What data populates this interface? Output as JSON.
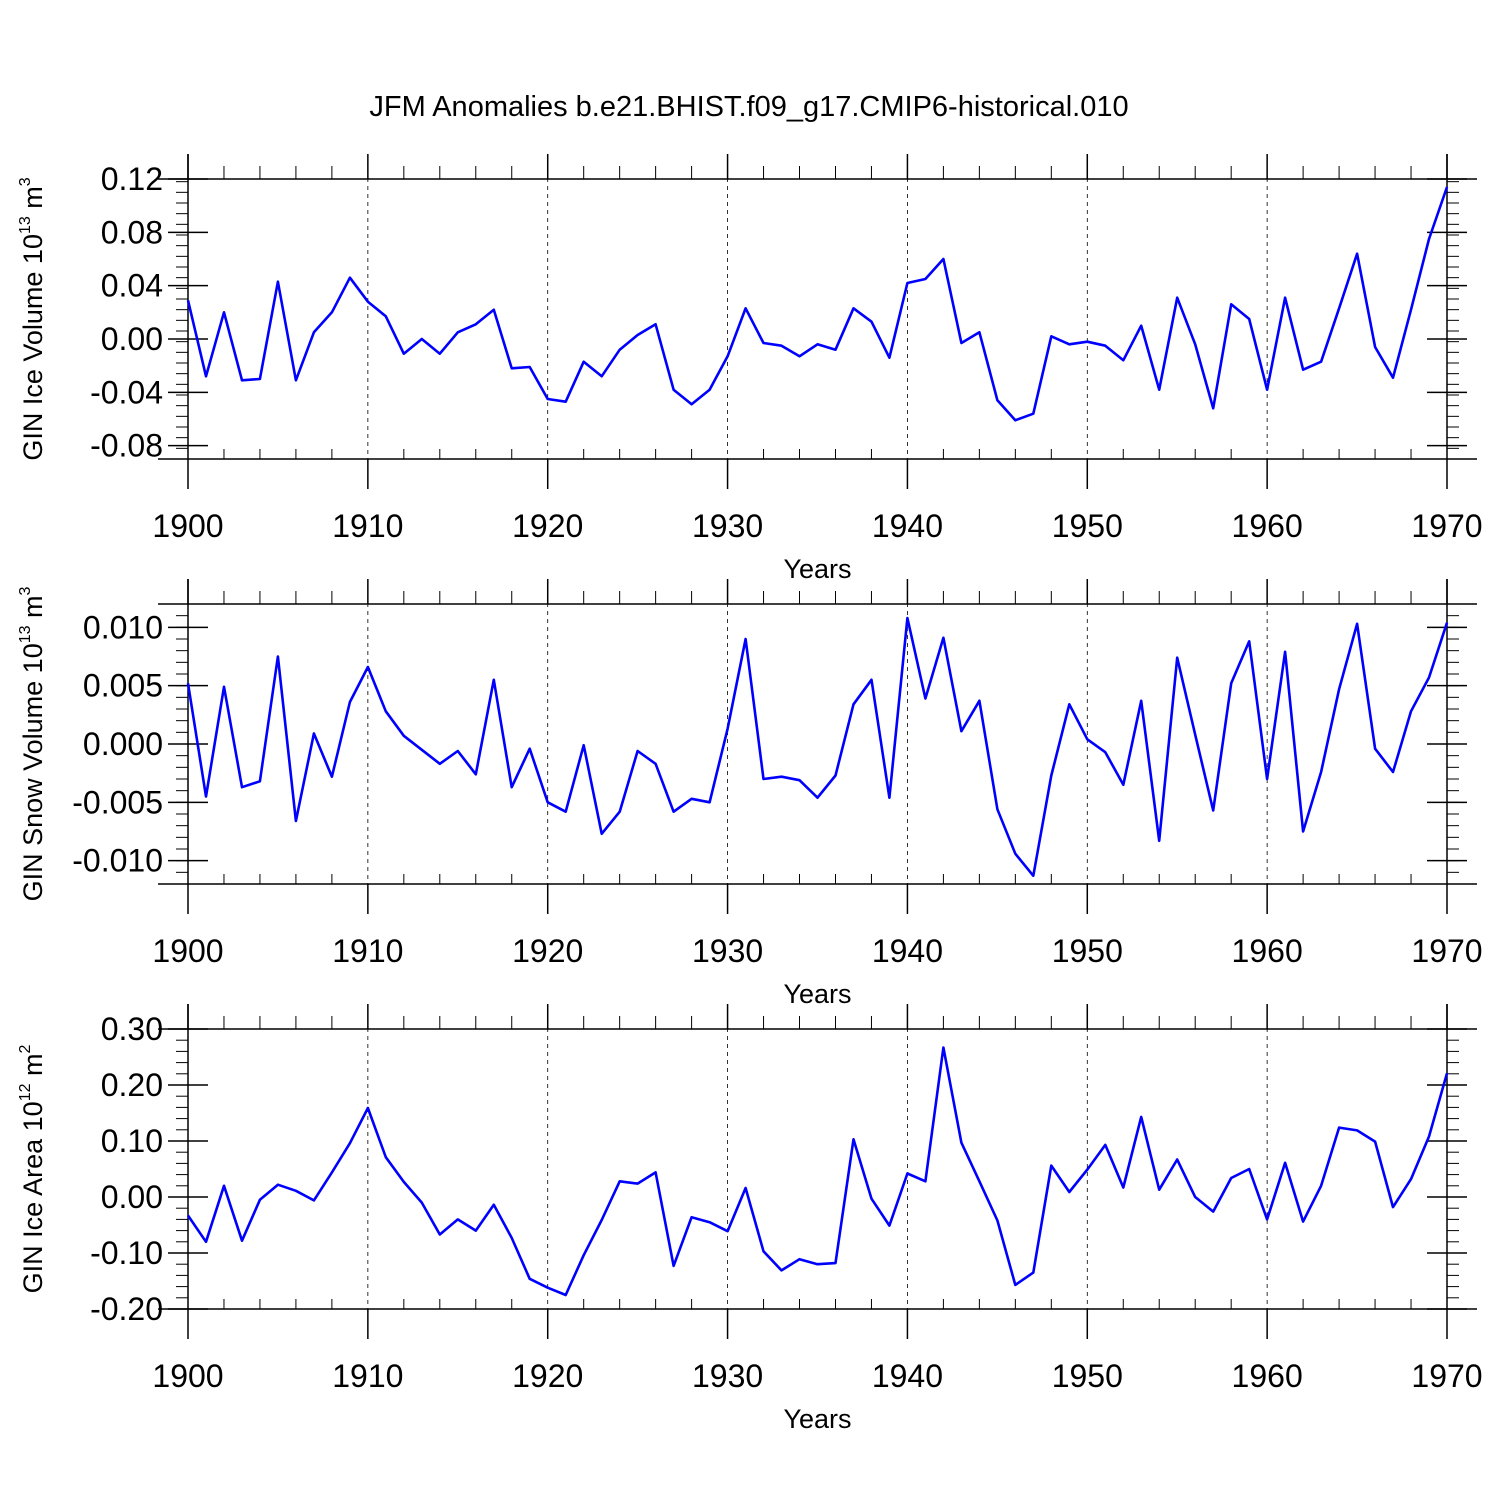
{
  "title": "JFM Anomalies b.e21.BHIST.f09_g17.CMIP6-historical.010",
  "colors": {
    "line": "#0000ff",
    "axes": "#000000",
    "grid": "#000000"
  },
  "chart_data": [
    {
      "type": "line",
      "title": "JFM Anomalies b.e21.BHIST.f09_g17.CMIP6-historical.010",
      "ylabel": {
        "text": "GIN Ice Volume 10",
        "sup": "13",
        "text2": " m",
        "sup2": "3"
      },
      "xlabel": "Years",
      "xlim": [
        1900,
        1970
      ],
      "ylim": [
        -0.09,
        0.12
      ],
      "xticks": [
        1900,
        1910,
        1920,
        1930,
        1940,
        1950,
        1960,
        1970
      ],
      "xtick_labels": [
        "1900",
        "1910",
        "1920",
        "1930",
        "1940",
        "1950",
        "1960",
        "1970"
      ],
      "yticks": [
        -0.08,
        -0.04,
        0.0,
        0.04,
        0.08,
        0.12
      ],
      "ytick_labels": [
        "-0.08",
        "-0.04",
        "0.00",
        "0.04",
        "0.08",
        "0.12"
      ],
      "grid": "vertical dashed at major x ticks",
      "x": [
        1900,
        1901,
        1902,
        1903,
        1904,
        1905,
        1906,
        1907,
        1908,
        1909,
        1910,
        1911,
        1912,
        1913,
        1914,
        1915,
        1916,
        1917,
        1918,
        1919,
        1920,
        1921,
        1922,
        1923,
        1924,
        1925,
        1926,
        1927,
        1928,
        1929,
        1930,
        1931,
        1932,
        1933,
        1934,
        1935,
        1936,
        1937,
        1938,
        1939,
        1940,
        1941,
        1942,
        1943,
        1944,
        1945,
        1946,
        1947,
        1948,
        1949,
        1950,
        1951,
        1952,
        1953,
        1954,
        1955,
        1956,
        1957,
        1958,
        1959,
        1960,
        1961,
        1962,
        1963,
        1964,
        1965,
        1966,
        1967,
        1968,
        1969,
        1970
      ],
      "series": [
        {
          "name": "GIN Ice Volume",
          "values": [
            0.029,
            -0.028,
            0.02,
            -0.031,
            -0.03,
            0.043,
            -0.031,
            0.005,
            0.02,
            0.046,
            0.028,
            0.017,
            -0.011,
            0.0,
            -0.011,
            0.005,
            0.011,
            0.022,
            -0.022,
            -0.021,
            -0.045,
            -0.047,
            -0.017,
            -0.028,
            -0.008,
            0.003,
            0.011,
            -0.038,
            -0.049,
            -0.038,
            -0.013,
            0.023,
            -0.003,
            -0.005,
            -0.013,
            -0.004,
            -0.008,
            0.023,
            0.013,
            -0.014,
            0.042,
            0.045,
            0.06,
            -0.003,
            0.005,
            -0.046,
            -0.061,
            -0.056,
            0.002,
            -0.004,
            -0.002,
            -0.005,
            -0.016,
            0.01,
            -0.038,
            0.031,
            -0.004,
            -0.052,
            0.026,
            0.015,
            -0.038,
            0.031,
            -0.023,
            -0.017,
            0.023,
            0.064,
            -0.006,
            -0.029,
            0.022,
            0.075,
            0.114
          ]
        }
      ]
    },
    {
      "type": "line",
      "ylabel": {
        "text": "GIN Snow Volume 10",
        "sup": "13",
        "text2": " m",
        "sup2": "3"
      },
      "xlabel": "Years",
      "xlim": [
        1900,
        1970
      ],
      "ylim": [
        -0.012,
        0.012
      ],
      "xticks": [
        1900,
        1910,
        1920,
        1930,
        1940,
        1950,
        1960,
        1970
      ],
      "xtick_labels": [
        "1900",
        "1910",
        "1920",
        "1930",
        "1940",
        "1950",
        "1960",
        "1970"
      ],
      "yticks": [
        -0.01,
        -0.005,
        0.0,
        0.005,
        0.01
      ],
      "ytick_labels": [
        "-0.010",
        "-0.005",
        "0.000",
        "0.005",
        "0.010"
      ],
      "grid": "vertical dashed at major x ticks",
      "x": [
        1900,
        1901,
        1902,
        1903,
        1904,
        1905,
        1906,
        1907,
        1908,
        1909,
        1910,
        1911,
        1912,
        1913,
        1914,
        1915,
        1916,
        1917,
        1918,
        1919,
        1920,
        1921,
        1922,
        1923,
        1924,
        1925,
        1926,
        1927,
        1928,
        1929,
        1930,
        1931,
        1932,
        1933,
        1934,
        1935,
        1936,
        1937,
        1938,
        1939,
        1940,
        1941,
        1942,
        1943,
        1944,
        1945,
        1946,
        1947,
        1948,
        1949,
        1950,
        1951,
        1952,
        1953,
        1954,
        1955,
        1956,
        1957,
        1958,
        1959,
        1960,
        1961,
        1962,
        1963,
        1964,
        1965,
        1966,
        1967,
        1968,
        1969,
        1970
      ],
      "series": [
        {
          "name": "GIN Snow Volume",
          "values": [
            0.0052,
            -0.0045,
            0.0049,
            -0.0037,
            -0.0032,
            0.0075,
            -0.0066,
            0.0009,
            -0.0028,
            0.0036,
            0.0066,
            0.0028,
            0.0007,
            -0.0005,
            -0.0017,
            -0.0006,
            -0.0026,
            0.0055,
            -0.0037,
            -0.0004,
            -0.005,
            -0.0058,
            -0.0001,
            -0.0077,
            -0.0058,
            -0.0006,
            -0.0017,
            -0.0058,
            -0.0047,
            -0.005,
            0.0013,
            0.009,
            -0.003,
            -0.0028,
            -0.0031,
            -0.0046,
            -0.0027,
            0.0034,
            0.0055,
            -0.0046,
            0.0108,
            0.0039,
            0.0091,
            0.0011,
            0.0037,
            -0.0056,
            -0.0094,
            -0.0113,
            -0.0027,
            0.0034,
            0.0004,
            -0.0007,
            -0.0035,
            0.0037,
            -0.0083,
            0.0074,
            0.0008,
            -0.0057,
            0.0052,
            0.0088,
            -0.003,
            0.0079,
            -0.0075,
            -0.0024,
            0.0047,
            0.0103,
            -0.0004,
            -0.0024,
            0.0028,
            0.0057,
            0.0104
          ]
        }
      ]
    },
    {
      "type": "line",
      "ylabel": {
        "text": "GIN Ice Area 10",
        "sup": "12",
        "text2": " m",
        "sup2": "2"
      },
      "xlabel": "Years",
      "xlim": [
        1900,
        1970
      ],
      "ylim": [
        -0.2,
        0.3
      ],
      "xticks": [
        1900,
        1910,
        1920,
        1930,
        1940,
        1950,
        1960,
        1970
      ],
      "xtick_labels": [
        "1900",
        "1910",
        "1920",
        "1930",
        "1940",
        "1950",
        "1960",
        "1970"
      ],
      "yticks": [
        -0.2,
        -0.1,
        0.0,
        0.1,
        0.2,
        0.3
      ],
      "ytick_labels": [
        "-0.20",
        "-0.10",
        "0.00",
        "0.10",
        "0.20",
        "0.30"
      ],
      "grid": "vertical dashed at major x ticks",
      "x": [
        1900,
        1901,
        1902,
        1903,
        1904,
        1905,
        1906,
        1907,
        1908,
        1909,
        1910,
        1911,
        1912,
        1913,
        1914,
        1915,
        1916,
        1917,
        1918,
        1919,
        1920,
        1921,
        1922,
        1923,
        1924,
        1925,
        1926,
        1927,
        1928,
        1929,
        1930,
        1931,
        1932,
        1933,
        1934,
        1935,
        1936,
        1937,
        1938,
        1939,
        1940,
        1941,
        1942,
        1943,
        1944,
        1945,
        1946,
        1947,
        1948,
        1949,
        1950,
        1951,
        1952,
        1953,
        1954,
        1955,
        1956,
        1957,
        1958,
        1959,
        1960,
        1961,
        1962,
        1963,
        1964,
        1965,
        1966,
        1967,
        1968,
        1969,
        1970
      ],
      "series": [
        {
          "name": "GIN Ice Area",
          "values": [
            -0.033,
            -0.08,
            0.02,
            -0.078,
            -0.005,
            0.022,
            0.011,
            -0.006,
            0.044,
            0.096,
            0.159,
            0.071,
            0.027,
            -0.01,
            -0.067,
            -0.04,
            -0.06,
            -0.014,
            -0.073,
            -0.146,
            -0.162,
            -0.175,
            -0.104,
            -0.041,
            0.028,
            0.024,
            0.044,
            -0.123,
            -0.036,
            -0.045,
            -0.061,
            0.016,
            -0.097,
            -0.131,
            -0.111,
            -0.12,
            -0.118,
            0.103,
            -0.003,
            -0.051,
            0.042,
            0.028,
            0.267,
            0.097,
            0.028,
            -0.042,
            -0.157,
            -0.135,
            0.056,
            0.009,
            0.049,
            0.093,
            0.017,
            0.143,
            0.013,
            0.067,
            0.0,
            -0.026,
            0.034,
            0.05,
            -0.04,
            0.061,
            -0.044,
            0.02,
            0.124,
            0.119,
            0.099,
            -0.018,
            0.032,
            0.108,
            0.221
          ]
        }
      ]
    }
  ]
}
